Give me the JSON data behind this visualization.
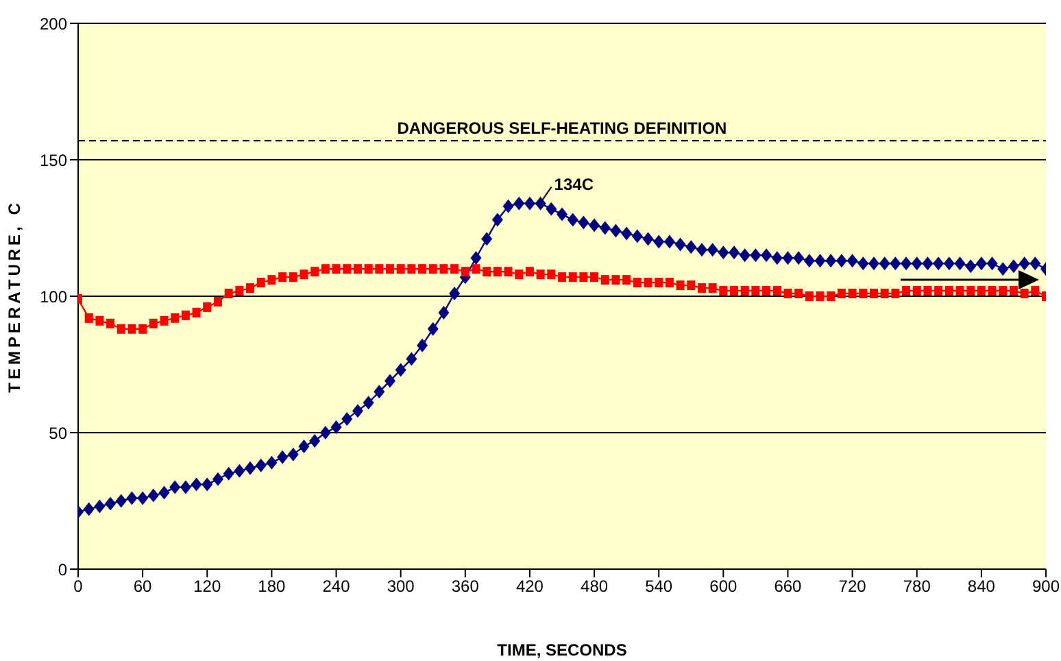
{
  "chart_data": {
    "type": "line",
    "xlabel": "TIME, SECONDS",
    "ylabel": "TEMPERATURE, C",
    "x": [
      0,
      10,
      20,
      30,
      40,
      50,
      60,
      70,
      80,
      90,
      100,
      110,
      120,
      130,
      140,
      150,
      160,
      170,
      180,
      190,
      200,
      210,
      220,
      230,
      240,
      250,
      260,
      270,
      280,
      290,
      300,
      310,
      320,
      330,
      340,
      350,
      360,
      370,
      380,
      390,
      400,
      410,
      420,
      430,
      440,
      450,
      460,
      470,
      480,
      490,
      500,
      510,
      520,
      530,
      540,
      550,
      560,
      570,
      580,
      590,
      600,
      610,
      620,
      630,
      640,
      650,
      660,
      670,
      680,
      690,
      700,
      710,
      720,
      730,
      740,
      750,
      760,
      770,
      780,
      790,
      800,
      810,
      820,
      830,
      840,
      850,
      860,
      870,
      880,
      890,
      900
    ],
    "series": [
      {
        "color": "#000080",
        "marker": "diamond",
        "values": [
          21,
          22,
          23,
          24,
          25,
          26,
          26,
          27,
          28,
          30,
          30,
          31,
          31,
          33,
          35,
          36,
          37,
          38,
          39,
          41,
          42,
          45,
          47,
          50,
          52,
          55,
          58,
          61,
          65,
          69,
          73,
          77,
          82,
          88,
          94,
          101,
          107,
          114,
          121,
          128,
          133,
          134,
          134,
          134,
          132,
          130,
          128,
          127,
          126,
          125,
          124,
          123,
          122,
          121,
          120,
          120,
          119,
          118,
          117,
          117,
          116,
          116,
          115,
          115,
          115,
          114,
          114,
          114,
          113,
          113,
          113,
          113,
          113,
          112,
          112,
          112,
          112,
          112,
          112,
          112,
          112,
          112,
          112,
          111,
          112,
          112,
          110,
          111,
          112,
          112,
          110
        ]
      },
      {
        "color": "#ff0000",
        "marker": "square",
        "values": [
          99,
          92,
          91,
          90,
          88,
          88,
          88,
          90,
          91,
          92,
          93,
          94,
          96,
          98,
          101,
          102,
          103,
          105,
          106,
          107,
          107,
          108,
          109,
          110,
          110,
          110,
          110,
          110,
          110,
          110,
          110,
          110,
          110,
          110,
          110,
          110,
          109,
          110,
          109,
          109,
          109,
          108,
          109,
          108,
          108,
          107,
          107,
          107,
          107,
          106,
          106,
          106,
          105,
          105,
          105,
          105,
          104,
          104,
          103,
          103,
          102,
          102,
          102,
          102,
          102,
          102,
          101,
          101,
          100,
          100,
          100,
          101,
          101,
          101,
          101,
          101,
          101,
          102,
          102,
          102,
          102,
          102,
          102,
          102,
          102,
          102,
          102,
          102,
          101,
          102,
          100
        ]
      }
    ],
    "xlim": [
      0,
      900
    ],
    "xticks": [
      0,
      60,
      120,
      180,
      240,
      300,
      360,
      420,
      480,
      540,
      600,
      660,
      720,
      780,
      840,
      900
    ],
    "ylim": [
      0,
      200
    ],
    "yticks": [
      0,
      50,
      100,
      150,
      200
    ],
    "grid": "y",
    "legend": false,
    "line_style": "solid",
    "ref_lines": [
      {
        "axis": "y",
        "value": 157,
        "label": "DANGEROUS SELF-HEATING DEFINITION",
        "line_style": "dashed",
        "color": "#000000"
      }
    ],
    "annotations": [
      {
        "text": "134C",
        "x": 430,
        "y": 134
      }
    ]
  }
}
